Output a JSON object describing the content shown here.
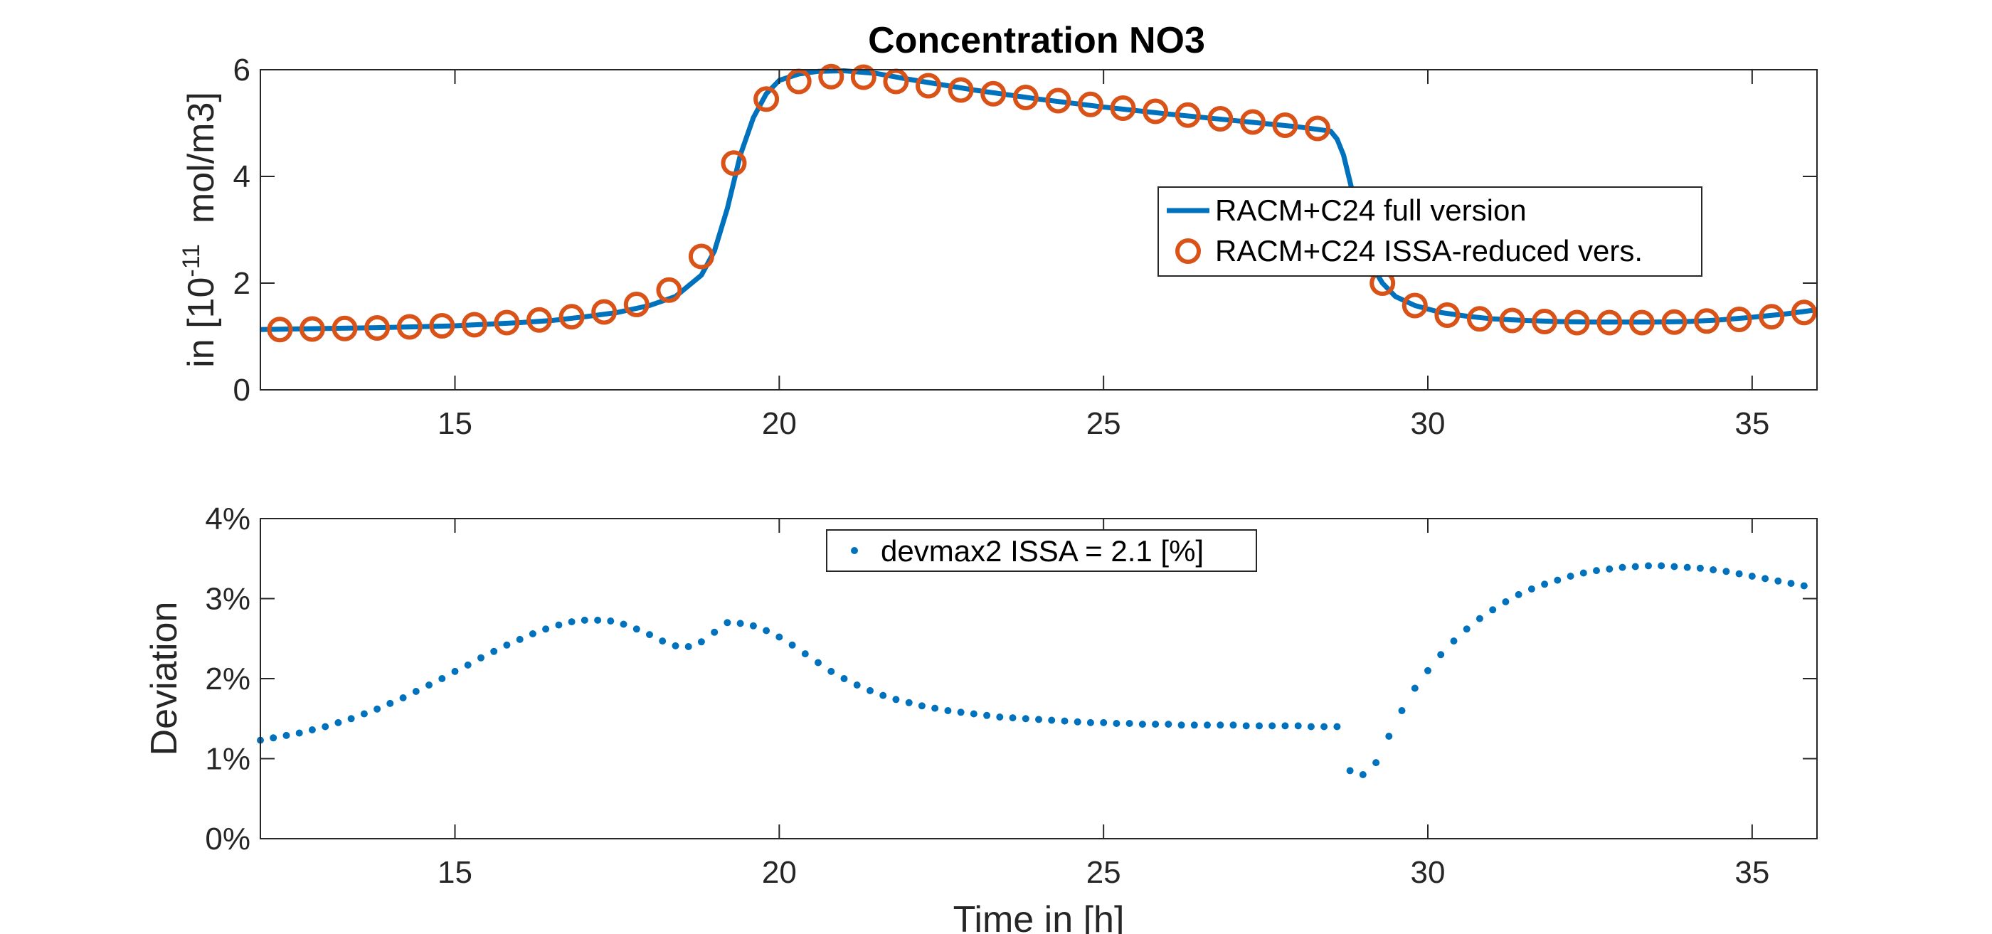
{
  "figure": {
    "title": "Concentration NO3",
    "colors": {
      "full": "#0072BD",
      "reduced": "#D95319",
      "deviation": "#0072BD",
      "axis": "#262626"
    }
  },
  "chart_data": [
    {
      "type": "line",
      "title": "Concentration NO3",
      "xlabel": "",
      "ylabel": "in [10^-11  mol/m3]",
      "ylabel_parts": {
        "prefix": "in [10",
        "exponent": "-11",
        "suffix": "  mol/m3]"
      },
      "xlim": [
        12,
        36
      ],
      "ylim": [
        0,
        6
      ],
      "xticks": [
        15,
        20,
        25,
        30,
        35
      ],
      "yticks": [
        0,
        2,
        4,
        6
      ],
      "grid": false,
      "legend": {
        "placement": "right",
        "entries": [
          "RACM+C24 full version",
          "RACM+C24 ISSA-reduced vers."
        ]
      },
      "series": [
        {
          "name": "RACM+C24 full version",
          "style": "line",
          "color": "#0072BD",
          "x": [
            12.0,
            13.0,
            14.0,
            15.0,
            16.0,
            16.5,
            17.0,
            17.5,
            18.0,
            18.4,
            18.8,
            19.0,
            19.2,
            19.4,
            19.6,
            19.8,
            20.0,
            20.3,
            20.6,
            21.0,
            21.5,
            22.0,
            22.5,
            23.0,
            24.0,
            25.0,
            26.0,
            27.0,
            28.0,
            28.5,
            28.6,
            28.7,
            28.8,
            28.9,
            29.0,
            29.1,
            29.2,
            29.3,
            29.5,
            29.8,
            30.2,
            30.6,
            31.0,
            31.5,
            32.0,
            32.5,
            33.0,
            33.5,
            34.0,
            34.5,
            35.0,
            35.5,
            36.0
          ],
          "y": [
            1.13,
            1.15,
            1.17,
            1.2,
            1.26,
            1.3,
            1.37,
            1.45,
            1.58,
            1.75,
            2.15,
            2.6,
            3.4,
            4.4,
            5.1,
            5.55,
            5.8,
            5.92,
            5.97,
            5.98,
            5.93,
            5.82,
            5.72,
            5.62,
            5.45,
            5.3,
            5.17,
            5.05,
            4.93,
            4.85,
            4.7,
            4.4,
            3.9,
            3.4,
            2.9,
            2.5,
            2.2,
            2.0,
            1.75,
            1.58,
            1.45,
            1.38,
            1.33,
            1.3,
            1.28,
            1.27,
            1.27,
            1.27,
            1.28,
            1.31,
            1.36,
            1.42,
            1.5
          ]
        },
        {
          "name": "RACM+C24 ISSA-reduced vers.",
          "style": "markers",
          "color": "#D95319",
          "x": [
            12.3,
            12.8,
            13.3,
            13.8,
            14.3,
            14.8,
            15.3,
            15.8,
            16.3,
            16.8,
            17.3,
            17.8,
            18.3,
            18.8,
            19.3,
            19.8,
            20.3,
            20.8,
            21.3,
            21.8,
            22.3,
            22.8,
            23.3,
            23.8,
            24.3,
            24.8,
            25.3,
            25.8,
            26.3,
            26.8,
            27.3,
            27.8,
            28.3,
            29.3,
            29.8,
            30.3,
            30.8,
            31.3,
            31.8,
            32.3,
            32.8,
            33.3,
            33.8,
            34.3,
            34.8,
            35.3,
            35.8
          ],
          "y": [
            1.13,
            1.14,
            1.15,
            1.16,
            1.18,
            1.2,
            1.22,
            1.26,
            1.31,
            1.37,
            1.46,
            1.6,
            1.87,
            2.5,
            4.25,
            5.45,
            5.78,
            5.87,
            5.86,
            5.78,
            5.7,
            5.62,
            5.55,
            5.48,
            5.42,
            5.35,
            5.28,
            5.22,
            5.15,
            5.08,
            5.02,
            4.96,
            4.9,
            2.0,
            1.58,
            1.4,
            1.33,
            1.3,
            1.28,
            1.26,
            1.26,
            1.26,
            1.27,
            1.29,
            1.32,
            1.37,
            1.45
          ]
        }
      ]
    },
    {
      "type": "scatter",
      "title": "",
      "xlabel": "Time in [h]",
      "ylabel": "Deviation",
      "xlim": [
        12,
        36
      ],
      "ylim": [
        0,
        4
      ],
      "xticks": [
        15,
        20,
        25,
        30,
        35
      ],
      "yticks": [
        0,
        1,
        2,
        3,
        4
      ],
      "ytick_labels": [
        "0%",
        "1%",
        "2%",
        "3%",
        "4%"
      ],
      "grid": false,
      "legend": {
        "placement": "top-center",
        "entries": [
          "devmax2 ISSA = 2.1 [%]"
        ]
      },
      "series": [
        {
          "name": "devmax2 ISSA = 2.1 [%]",
          "style": "dots",
          "color": "#0072BD",
          "unit": "%",
          "x": [
            12.0,
            12.2,
            12.4,
            12.6,
            12.8,
            13.0,
            13.2,
            13.4,
            13.6,
            13.8,
            14.0,
            14.2,
            14.4,
            14.6,
            14.8,
            15.0,
            15.2,
            15.4,
            15.6,
            15.8,
            16.0,
            16.2,
            16.4,
            16.6,
            16.8,
            17.0,
            17.2,
            17.4,
            17.6,
            17.8,
            18.0,
            18.2,
            18.4,
            18.6,
            18.8,
            19.0,
            19.2,
            19.4,
            19.6,
            19.8,
            20.0,
            20.2,
            20.4,
            20.6,
            20.8,
            21.0,
            21.2,
            21.4,
            21.6,
            21.8,
            22.0,
            22.2,
            22.4,
            22.6,
            22.8,
            23.0,
            23.2,
            23.4,
            23.6,
            23.8,
            24.0,
            24.2,
            24.4,
            24.6,
            24.8,
            25.0,
            25.2,
            25.4,
            25.6,
            25.8,
            26.0,
            26.2,
            26.4,
            26.6,
            26.8,
            27.0,
            27.2,
            27.4,
            27.6,
            27.8,
            28.0,
            28.2,
            28.4,
            28.6,
            28.8,
            29.0,
            29.2,
            29.4,
            29.6,
            29.8,
            30.0,
            30.2,
            30.4,
            30.6,
            30.8,
            31.0,
            31.2,
            31.4,
            31.6,
            31.8,
            32.0,
            32.2,
            32.4,
            32.6,
            32.8,
            33.0,
            33.2,
            33.4,
            33.6,
            33.8,
            34.0,
            34.2,
            34.4,
            34.6,
            34.8,
            35.0,
            35.2,
            35.4,
            35.6,
            35.8
          ],
          "y": [
            1.23,
            1.26,
            1.29,
            1.32,
            1.36,
            1.4,
            1.45,
            1.5,
            1.56,
            1.62,
            1.69,
            1.76,
            1.84,
            1.92,
            2.0,
            2.09,
            2.17,
            2.26,
            2.34,
            2.42,
            2.49,
            2.56,
            2.62,
            2.67,
            2.71,
            2.73,
            2.73,
            2.72,
            2.68,
            2.62,
            2.55,
            2.47,
            2.41,
            2.4,
            2.46,
            2.58,
            2.7,
            2.69,
            2.66,
            2.6,
            2.52,
            2.42,
            2.31,
            2.2,
            2.09,
            2.0,
            1.92,
            1.85,
            1.79,
            1.74,
            1.7,
            1.66,
            1.63,
            1.6,
            1.58,
            1.56,
            1.54,
            1.52,
            1.51,
            1.5,
            1.49,
            1.48,
            1.47,
            1.46,
            1.45,
            1.45,
            1.44,
            1.44,
            1.43,
            1.43,
            1.43,
            1.42,
            1.42,
            1.42,
            1.42,
            1.42,
            1.41,
            1.41,
            1.41,
            1.41,
            1.41,
            1.4,
            1.4,
            1.4,
            0.85,
            0.8,
            0.95,
            1.28,
            1.6,
            1.88,
            2.1,
            2.3,
            2.47,
            2.62,
            2.75,
            2.86,
            2.96,
            3.05,
            3.12,
            3.18,
            3.23,
            3.28,
            3.32,
            3.35,
            3.37,
            3.39,
            3.4,
            3.41,
            3.41,
            3.4,
            3.39,
            3.38,
            3.36,
            3.34,
            3.31,
            3.28,
            3.25,
            3.22,
            3.19,
            3.16
          ]
        }
      ]
    }
  ]
}
